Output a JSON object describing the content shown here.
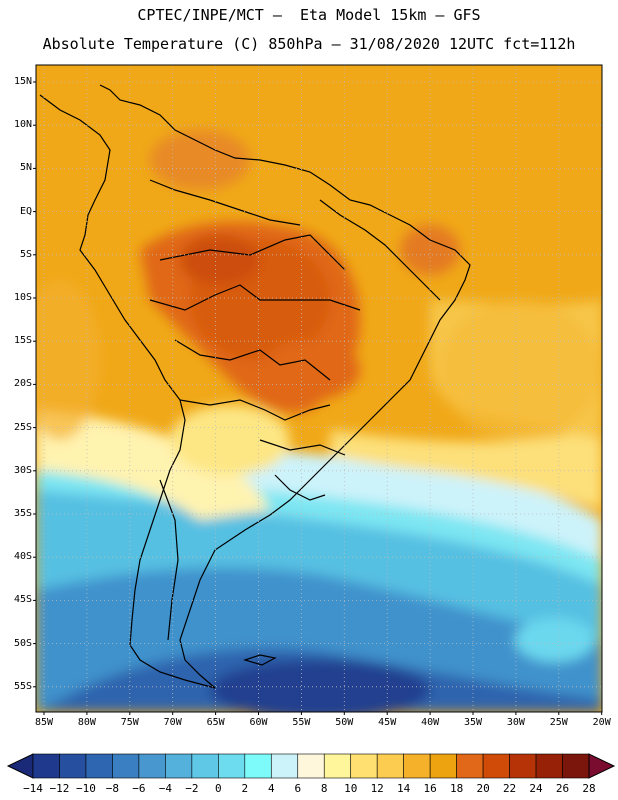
{
  "header": {
    "line1": "CPTEC/INPE/MCT –  Eta Model 15km – GFS",
    "line2": "Absolute Temperature (C) 850hPa – 31/08/2020 12UTC fct=112h"
  },
  "map": {
    "lat_labels": [
      "15N",
      "10N",
      "5N",
      "EQ",
      "5S",
      "10S",
      "15S",
      "20S",
      "25S",
      "30S",
      "35S",
      "40S",
      "45S",
      "50S",
      "55S"
    ],
    "lon_labels": [
      "85W",
      "80W",
      "75W",
      "70W",
      "65W",
      "60W",
      "55W",
      "50W",
      "45W",
      "40W",
      "35W",
      "30W",
      "25W",
      "20W"
    ]
  },
  "colorbar": {
    "colors": [
      "#1f3a8c",
      "#26509f",
      "#2e66b1",
      "#3a7fc1",
      "#4898cf",
      "#53b1dc",
      "#5ec8e6",
      "#6cdcee",
      "#7dfafa",
      "#cdf3fa",
      "#fff7dc",
      "#fff59a",
      "#ffe070",
      "#fccc50",
      "#f5b12a",
      "#eda310",
      "#e06818",
      "#d04a08",
      "#b63308",
      "#962106",
      "#7a160c"
    ],
    "labels": [
      "−14",
      "−12",
      "−10",
      "−8",
      "−6",
      "−4",
      "−2",
      "0",
      "2",
      "4",
      "6",
      "8",
      "10",
      "12",
      "14",
      "16",
      "18",
      "20",
      "22",
      "24",
      "26",
      "28"
    ]
  }
}
